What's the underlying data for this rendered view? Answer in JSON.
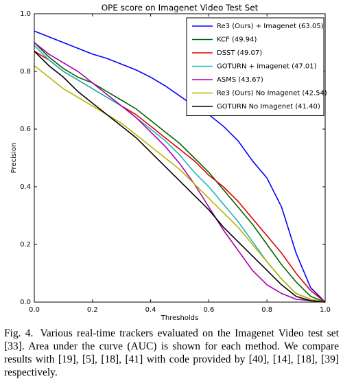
{
  "chart_data": {
    "type": "line",
    "title": "OPE score on Imagenet Video Test Set",
    "xlabel": "Thresholds",
    "ylabel": "Precision",
    "x": [
      0,
      0.05,
      0.1,
      0.15,
      0.2,
      0.25,
      0.3,
      0.35,
      0.4,
      0.45,
      0.5,
      0.55,
      0.6,
      0.65,
      0.7,
      0.75,
      0.8,
      0.85,
      0.9,
      0.95,
      1
    ],
    "xlim": [
      0,
      1
    ],
    "ylim": [
      0,
      1
    ],
    "xticks": [
      {
        "value": 0,
        "label": "0.0"
      },
      0.2,
      0.4,
      0.6,
      0.8,
      {
        "value": 1,
        "label": "1.0"
      }
    ],
    "yticks": [
      {
        "value": 0,
        "label": "0.0"
      },
      0.2,
      0.4,
      0.6,
      0.8,
      {
        "value": 1,
        "label": "1.0"
      }
    ],
    "legend": "upper right",
    "series": [
      {
        "name": "Re3 (Ours) + Imagenet (63.05)",
        "color": "#0000ff",
        "values": [
          0.94,
          0.92,
          0.9,
          0.88,
          0.86,
          0.845,
          0.825,
          0.805,
          0.78,
          0.75,
          0.715,
          0.68,
          0.65,
          0.61,
          0.56,
          0.49,
          0.43,
          0.33,
          0.17,
          0.05,
          0
        ]
      },
      {
        "name": "KCF (49.94)",
        "color": "#006400",
        "values": [
          0.9,
          0.85,
          0.81,
          0.78,
          0.76,
          0.73,
          0.7,
          0.67,
          0.63,
          0.59,
          0.55,
          0.5,
          0.45,
          0.39,
          0.33,
          0.27,
          0.2,
          0.13,
          0.07,
          0.02,
          0
        ]
      },
      {
        "name": "DSST (49.07)",
        "color": "#e00000",
        "values": [
          0.87,
          0.84,
          0.8,
          0.77,
          0.74,
          0.71,
          0.68,
          0.65,
          0.61,
          0.57,
          0.53,
          0.49,
          0.44,
          0.4,
          0.35,
          0.29,
          0.23,
          0.17,
          0.1,
          0.04,
          0
        ]
      },
      {
        "name": "GOTURN + Imagenet (47.01)",
        "color": "#20b5b5",
        "values": [
          0.89,
          0.84,
          0.8,
          0.77,
          0.74,
          0.71,
          0.68,
          0.64,
          0.6,
          0.56,
          0.51,
          0.45,
          0.4,
          0.34,
          0.28,
          0.21,
          0.14,
          0.08,
          0.03,
          0.01,
          0
        ]
      },
      {
        "name": "ASMS (43.67)",
        "color": "#aa00aa",
        "values": [
          0.9,
          0.86,
          0.83,
          0.8,
          0.76,
          0.72,
          0.68,
          0.64,
          0.59,
          0.54,
          0.48,
          0.41,
          0.33,
          0.25,
          0.18,
          0.11,
          0.06,
          0.03,
          0.01,
          0.005,
          0
        ]
      },
      {
        "name": "Re3 (Ours) No Imagenet (42.54)",
        "color": "#b5b500",
        "values": [
          0.82,
          0.78,
          0.74,
          0.71,
          0.68,
          0.65,
          0.62,
          0.58,
          0.54,
          0.5,
          0.46,
          0.41,
          0.36,
          0.31,
          0.26,
          0.2,
          0.14,
          0.08,
          0.03,
          0.01,
          0
        ]
      },
      {
        "name": "GOTURN No Imagenet (41.40)",
        "color": "#000000",
        "values": [
          0.87,
          0.82,
          0.78,
          0.73,
          0.69,
          0.65,
          0.61,
          0.57,
          0.52,
          0.47,
          0.42,
          0.37,
          0.32,
          0.26,
          0.21,
          0.16,
          0.11,
          0.06,
          0.02,
          0.005,
          0
        ]
      }
    ]
  },
  "caption": {
    "label": "Fig. 4.",
    "text": "Various real-time trackers evaluated on the Imagenet Video test set [33]. Area under the curve (AUC) is shown for each method. We compare results with [19], [5], [18], [41] with code provided by [40], [14], [18], [39] respectively."
  }
}
